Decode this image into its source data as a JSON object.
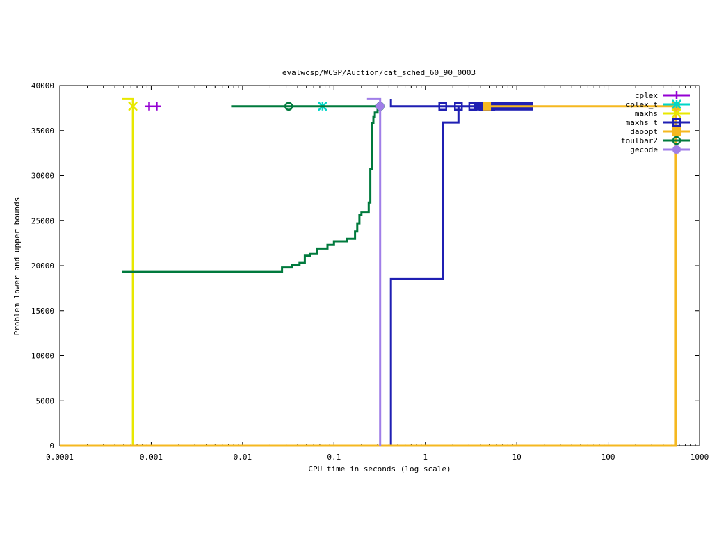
{
  "chart_data": {
    "type": "line",
    "title": "evalwcsp/WCSP/Auction/cat_sched_60_90_0003",
    "xlabel": "CPU time in seconds (log scale)",
    "ylabel": "Problem lower and upper bounds",
    "x_scale": "log",
    "xlim": [
      0.0001,
      1000
    ],
    "ylim": [
      0,
      40000
    ],
    "x_ticks": [
      0.0001,
      0.001,
      0.01,
      0.1,
      1,
      10,
      100,
      1000
    ],
    "x_tick_labels": [
      "0.0001",
      "0.001",
      "0.01",
      "0.1",
      "1",
      "10",
      "100",
      "1000"
    ],
    "y_ticks": [
      0,
      5000,
      10000,
      15000,
      20000,
      25000,
      30000,
      35000,
      40000
    ],
    "y_tick_labels": [
      "0",
      "5000",
      "10000",
      "15000",
      "20000",
      "25000",
      "30000",
      "35000",
      "40000"
    ],
    "grid": false,
    "legend_position": "top-right",
    "series": [
      {
        "name": "cplex",
        "color": "#9400d3",
        "marker": "plus",
        "upper": [],
        "lower": [],
        "marks": [
          [
            0.00095,
            37700
          ],
          [
            0.00115,
            37700
          ]
        ]
      },
      {
        "name": "cplex_t",
        "color": "#00d6c8",
        "marker": "star",
        "upper": [],
        "lower": [],
        "marks": [
          [
            0.075,
            37700
          ]
        ]
      },
      {
        "name": "maxhs",
        "color": "#e8e800",
        "marker": "x",
        "upper": [
          [
            0.00048,
            38500
          ],
          [
            0.00063,
            38500
          ],
          [
            0.00063,
            37700
          ],
          [
            0.00065,
            37700
          ]
        ],
        "lower": [
          [
            0.00063,
            0
          ],
          [
            0.00063,
            37700
          ]
        ],
        "marks": [
          [
            0.00063,
            37700
          ]
        ]
      },
      {
        "name": "maxhs_t",
        "color": "#1f1fb3",
        "marker": "square",
        "upper": [
          [
            0.42,
            38500
          ],
          [
            0.42,
            37700
          ],
          [
            15,
            37700
          ]
        ],
        "lower": [
          [
            0.0001,
            0
          ],
          [
            0.42,
            0
          ],
          [
            0.42,
            18500
          ],
          [
            1.55,
            18500
          ],
          [
            1.55,
            35900
          ],
          [
            2.3,
            35900
          ],
          [
            2.3,
            37700
          ]
        ],
        "marks": [
          [
            1.55,
            37700
          ],
          [
            2.3,
            37700
          ],
          [
            3.3,
            37700
          ],
          [
            4.3,
            37700
          ],
          [
            5.2,
            37700
          ]
        ],
        "bar_range": [
          3.4,
          15
        ]
      },
      {
        "name": "daoopt",
        "color": "#f5b820",
        "marker": "filled-square",
        "upper": [
          [
            4.7,
            37700
          ],
          [
            550,
            37700
          ]
        ],
        "lower": [
          [
            0.0001,
            0
          ],
          [
            550,
            0
          ],
          [
            550,
            37700
          ]
        ],
        "marks": [
          [
            4.7,
            37700
          ],
          [
            550,
            37700
          ]
        ]
      },
      {
        "name": "toulbar2",
        "color": "#007a3d",
        "marker": "circle",
        "upper": [
          [
            0.0075,
            37700
          ],
          [
            0.33,
            37700
          ]
        ],
        "lower": [
          [
            0.00048,
            19300
          ],
          [
            0.027,
            19300
          ],
          [
            0.027,
            19800
          ],
          [
            0.035,
            19800
          ],
          [
            0.035,
            20100
          ],
          [
            0.042,
            20100
          ],
          [
            0.042,
            20300
          ],
          [
            0.048,
            20300
          ],
          [
            0.048,
            21100
          ],
          [
            0.055,
            21100
          ],
          [
            0.055,
            21300
          ],
          [
            0.065,
            21300
          ],
          [
            0.065,
            21900
          ],
          [
            0.085,
            21900
          ],
          [
            0.085,
            22300
          ],
          [
            0.1,
            22300
          ],
          [
            0.1,
            22700
          ],
          [
            0.14,
            22700
          ],
          [
            0.14,
            23000
          ],
          [
            0.17,
            23000
          ],
          [
            0.17,
            23800
          ],
          [
            0.18,
            23800
          ],
          [
            0.18,
            24700
          ],
          [
            0.19,
            24700
          ],
          [
            0.19,
            25600
          ],
          [
            0.2,
            25600
          ],
          [
            0.2,
            25900
          ],
          [
            0.24,
            25900
          ],
          [
            0.24,
            27000
          ],
          [
            0.25,
            27000
          ],
          [
            0.25,
            30700
          ],
          [
            0.26,
            30700
          ],
          [
            0.26,
            35800
          ],
          [
            0.27,
            35800
          ],
          [
            0.27,
            36500
          ],
          [
            0.28,
            36500
          ],
          [
            0.28,
            37000
          ],
          [
            0.3,
            37000
          ],
          [
            0.3,
            37700
          ]
        ],
        "marks": [
          [
            0.032,
            37700
          ],
          [
            0.32,
            37700
          ]
        ]
      },
      {
        "name": "gecode",
        "color": "#a07ee8",
        "marker": "filled-circle",
        "upper": [
          [
            0.23,
            38500
          ],
          [
            0.32,
            38500
          ],
          [
            0.32,
            37700
          ]
        ],
        "lower": [
          [
            0.32,
            0
          ],
          [
            0.32,
            37700
          ]
        ],
        "marks": [
          [
            0.32,
            37700
          ]
        ]
      }
    ]
  }
}
